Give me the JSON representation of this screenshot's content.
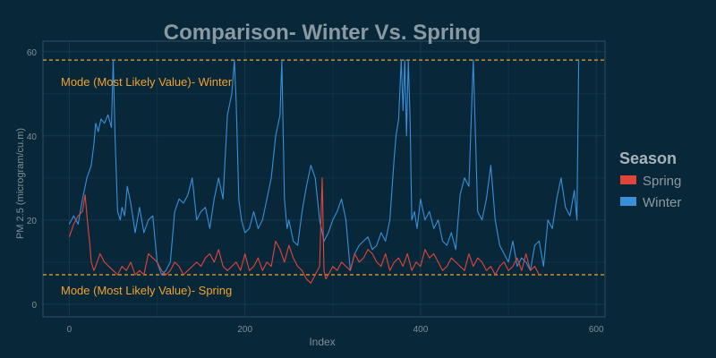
{
  "colors": {
    "background": "#08283a",
    "panel": "#08283a",
    "grid_major": "#143a4d",
    "grid_minor": "#0f3244",
    "axis_text": "#7f8f99",
    "title": "#8a9aa3",
    "legend_title": "#a7b3ba",
    "legend_text": "#8d9aa2",
    "mode_line": "#f0a22e",
    "spring": "#e0453a",
    "winter": "#3a8fd9"
  },
  "chart_data": {
    "type": "line",
    "title": "Comparison- Winter Vs. Spring",
    "xlabel": "Index",
    "ylabel": "PM 2.5 (microgram/cu.m)",
    "xlim": [
      0,
      600
    ],
    "ylim": [
      0,
      60
    ],
    "x_ticks": [
      0,
      200,
      400,
      600
    ],
    "y_ticks": [
      0,
      20,
      40,
      60
    ],
    "grid": true,
    "legend": {
      "title": "Season",
      "placement": "right",
      "items": [
        {
          "name": "Spring",
          "color": "#e0453a"
        },
        {
          "name": "Winter",
          "color": "#3a8fd9"
        }
      ]
    },
    "reference_lines": [
      {
        "y": 58,
        "label": "Mode (Most Likely Value)- Winter"
      },
      {
        "y": 7,
        "label": "Mode (Most Likely Value)- Spring"
      }
    ],
    "series": [
      {
        "name": "Winter",
        "color": "#3a8fd9",
        "x": [
          0,
          5,
          10,
          15,
          20,
          25,
          28,
          30,
          33,
          36,
          40,
          44,
          48,
          50,
          52,
          55,
          58,
          60,
          63,
          66,
          70,
          75,
          80,
          85,
          90,
          95,
          100,
          105,
          110,
          115,
          120,
          125,
          130,
          135,
          140,
          145,
          150,
          155,
          160,
          165,
          170,
          175,
          180,
          185,
          188,
          190,
          193,
          196,
          200,
          205,
          210,
          215,
          220,
          225,
          230,
          235,
          240,
          242,
          245,
          248,
          250,
          255,
          260,
          265,
          270,
          275,
          280,
          285,
          290,
          295,
          300,
          305,
          310,
          315,
          320,
          325,
          330,
          335,
          340,
          345,
          350,
          355,
          360,
          365,
          370,
          372,
          375,
          378,
          380,
          382,
          384,
          386,
          388,
          390,
          393,
          396,
          400,
          405,
          410,
          415,
          420,
          425,
          430,
          435,
          440,
          445,
          450,
          455,
          460,
          465,
          470,
          475,
          480,
          485,
          490,
          495,
          500,
          505,
          510,
          515,
          520,
          525,
          530,
          535,
          540,
          545,
          550,
          555,
          560,
          565,
          570,
          575,
          578,
          580
        ],
        "values": [
          19,
          21,
          19,
          25,
          30,
          33,
          38,
          43,
          41,
          44,
          43,
          45,
          42,
          58,
          40,
          22,
          20,
          23,
          21,
          28,
          24,
          17,
          23,
          17,
          20,
          21,
          10,
          7,
          8,
          10,
          22,
          25,
          24,
          26,
          30,
          20,
          22,
          23,
          18,
          25,
          30,
          25,
          45,
          50,
          58,
          48,
          25,
          20,
          17,
          18,
          22,
          18,
          20,
          25,
          30,
          40,
          45,
          58,
          25,
          18,
          20,
          15,
          14,
          22,
          28,
          33,
          30,
          20,
          15,
          17,
          20,
          22,
          25,
          20,
          8,
          12,
          14,
          15,
          16,
          13,
          14,
          17,
          15,
          20,
          35,
          40,
          44,
          58,
          46,
          58,
          40,
          58,
          44,
          20,
          22,
          18,
          25,
          20,
          22,
          18,
          20,
          15,
          14,
          17,
          13,
          26,
          30,
          28,
          58,
          22,
          20,
          25,
          33,
          20,
          14,
          12,
          10,
          15,
          9,
          11,
          10,
          8,
          14,
          15,
          9,
          20,
          18,
          25,
          30,
          23,
          21,
          27,
          20,
          58
        ]
      },
      {
        "name": "Spring",
        "color": "#e0453a",
        "x": [
          0,
          5,
          10,
          15,
          18,
          20,
          23,
          25,
          28,
          30,
          35,
          40,
          45,
          50,
          55,
          60,
          65,
          70,
          75,
          80,
          85,
          90,
          95,
          100,
          105,
          110,
          115,
          120,
          125,
          130,
          135,
          140,
          145,
          150,
          155,
          160,
          165,
          170,
          175,
          180,
          185,
          190,
          195,
          200,
          205,
          210,
          215,
          220,
          225,
          230,
          235,
          240,
          245,
          250,
          255,
          260,
          265,
          270,
          275,
          280,
          285,
          288,
          290,
          292,
          295,
          300,
          305,
          310,
          315,
          320,
          325,
          330,
          335,
          340,
          345,
          350,
          355,
          360,
          365,
          370,
          375,
          380,
          385,
          390,
          395,
          400,
          405,
          410,
          415,
          420,
          425,
          430,
          435,
          440,
          445,
          450,
          455,
          460,
          465,
          470,
          475,
          480,
          485,
          490,
          495,
          500,
          505,
          510,
          515,
          520,
          525,
          530,
          535
        ],
        "values": [
          16,
          19,
          21,
          22,
          26,
          21,
          15,
          10,
          8,
          9,
          12,
          10,
          9,
          8,
          7,
          9,
          8,
          10,
          7,
          8,
          7,
          12,
          11,
          10,
          8,
          7,
          8,
          10,
          9,
          7,
          8,
          9,
          10,
          9,
          11,
          12,
          10,
          13,
          9,
          8,
          9,
          10,
          8,
          12,
          8,
          9,
          11,
          8,
          10,
          9,
          15,
          13,
          10,
          14,
          11,
          9,
          8,
          6,
          5,
          7,
          9,
          30,
          8,
          6,
          7,
          9,
          8,
          10,
          9,
          8,
          12,
          10,
          11,
          13,
          12,
          10,
          9,
          12,
          8,
          10,
          11,
          9,
          12,
          8,
          10,
          9,
          13,
          11,
          12,
          10,
          8,
          9,
          11,
          10,
          9,
          8,
          12,
          9,
          11,
          10,
          8,
          9,
          7,
          9,
          10,
          8,
          9,
          11,
          8,
          12,
          8,
          9,
          7
        ]
      }
    ]
  }
}
